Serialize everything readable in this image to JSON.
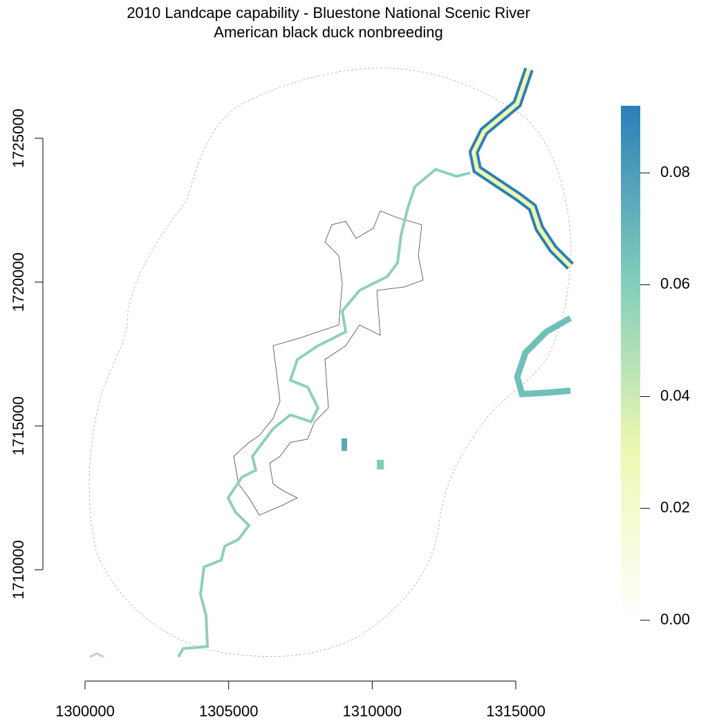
{
  "chart_data": {
    "type": "raster",
    "title": "2010 Landcape capability - Bluestone National Scenic River",
    "subtitle": "American black duck nonbreeding",
    "xlim": [
      1300000,
      1315000
    ],
    "xticks": [
      1300000,
      1305000,
      1310000,
      1315000
    ],
    "ylim": [
      1710000,
      1725000
    ],
    "yticks": [
      1710000,
      1715000,
      1720000,
      1725000
    ],
    "colorlim": [
      0,
      0.092
    ],
    "colorticks": [
      {
        "value": 0,
        "label": "0.00"
      },
      0.02,
      0.04,
      0.06,
      0.08
    ],
    "colorscale": [
      "#ffffff",
      "#edf8b1",
      "#7fcdbb",
      "#2c7fb8"
    ]
  }
}
